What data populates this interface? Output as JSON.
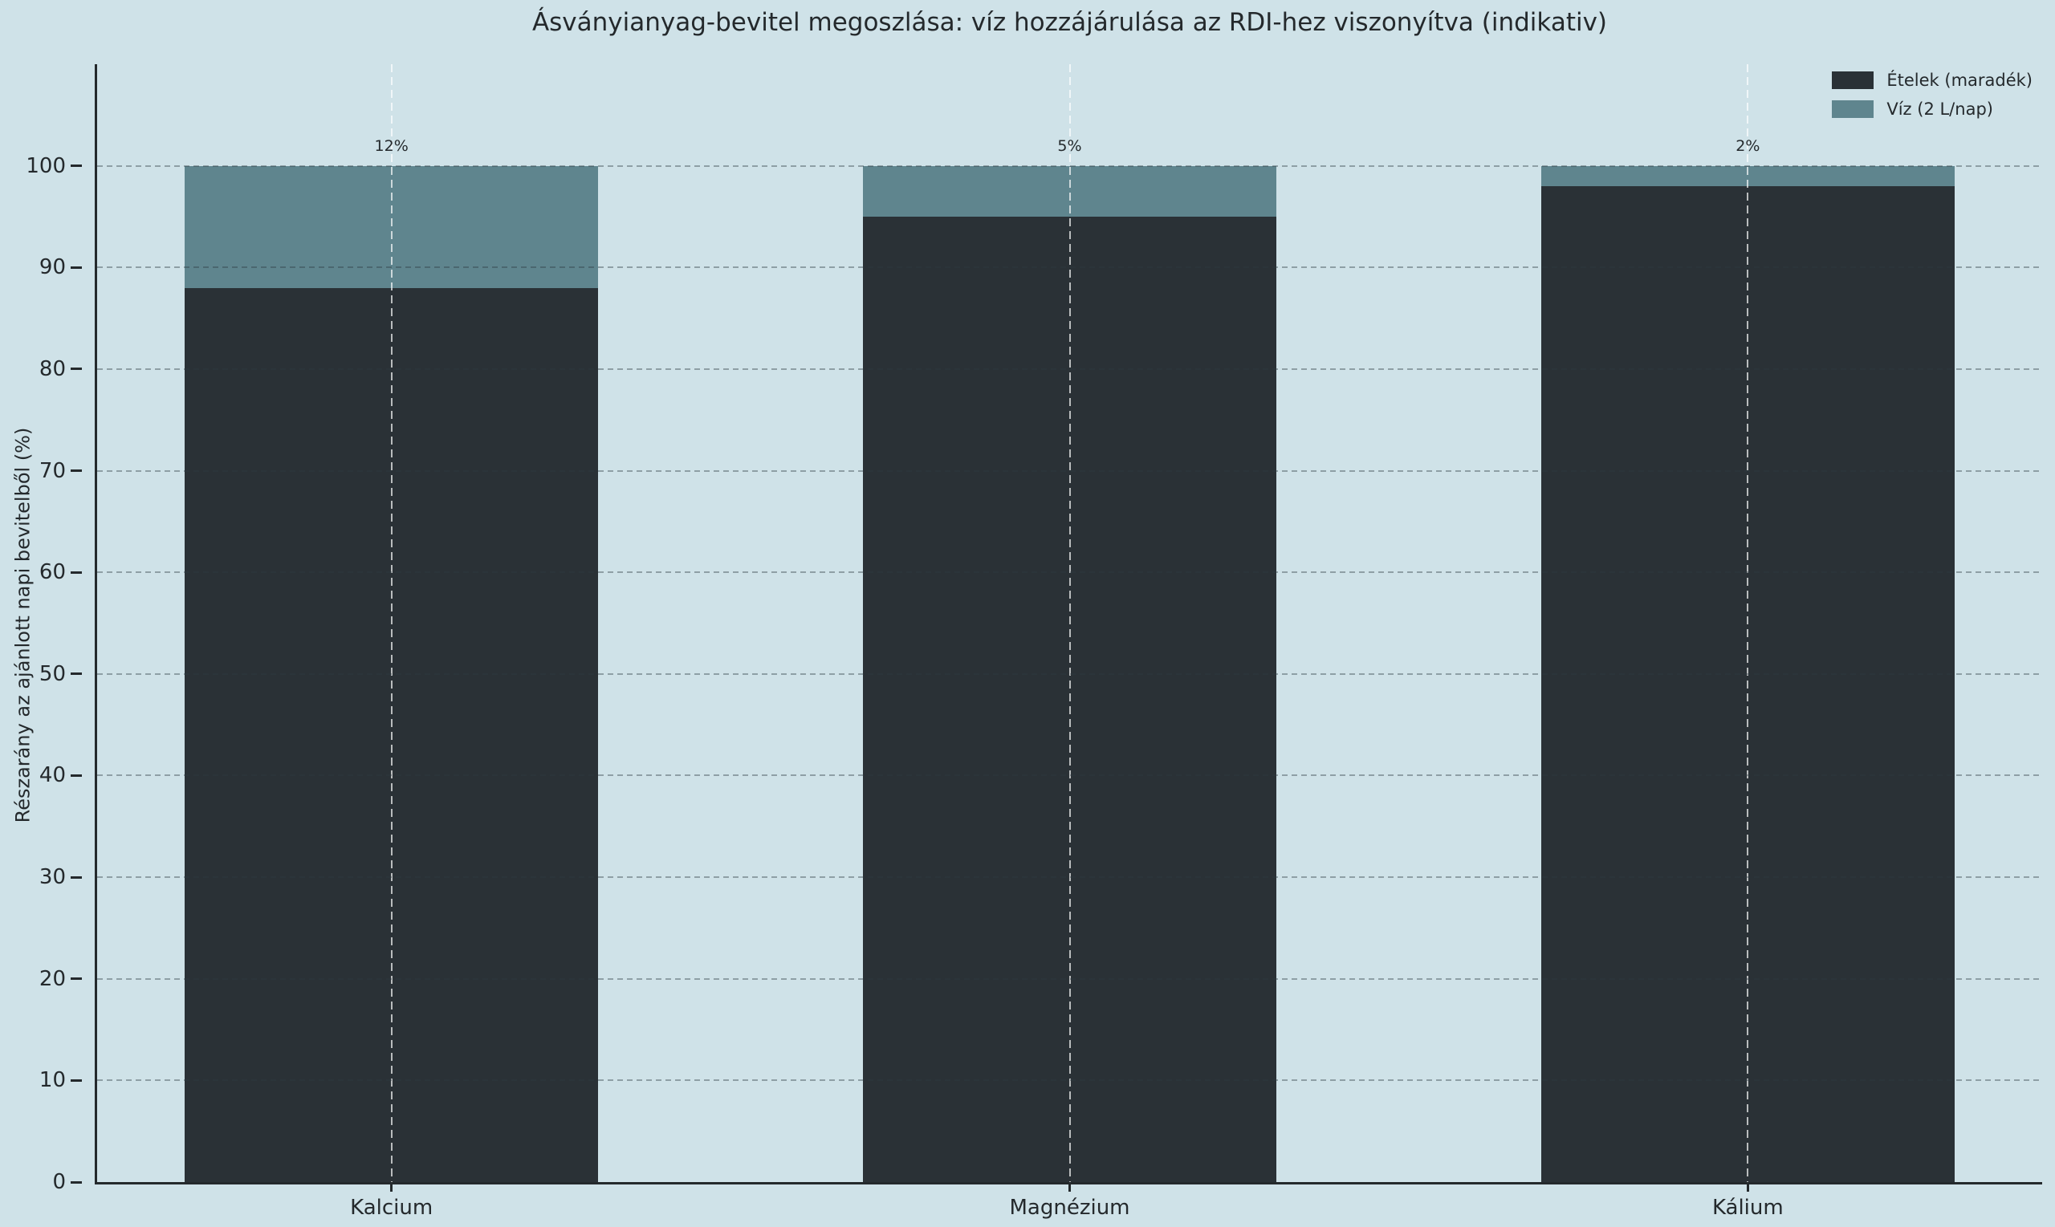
{
  "chart_data": {
    "type": "bar",
    "stacked": true,
    "title": "Ásványianyag-bevitel megoszlása: víz hozzájárulása az RDI-hez viszonyítva (indikativ)",
    "categories": [
      "Kalcium",
      "Magnézium",
      "Kálium"
    ],
    "series": [
      {
        "name": "Ételek (maradék)",
        "values": [
          88,
          95,
          98
        ],
        "color": "#2a3136"
      },
      {
        "name": "Víz (2 L/nap)",
        "values": [
          12,
          5,
          2
        ],
        "color": "#5f858e"
      }
    ],
    "bar_labels": [
      "12%",
      "5%",
      "2%"
    ],
    "xlabel": "",
    "ylabel": "Részarány az ajánlott napi bevitelből (%)",
    "ylim": [
      0,
      110
    ],
    "yticks": [
      0,
      10,
      20,
      30,
      40,
      50,
      60,
      70,
      80,
      90,
      100
    ],
    "grid": {
      "horizontal": "dashed-gray",
      "vertical_at_bar_centers": "dashed-white"
    },
    "legend_position": "upper right",
    "colors": {
      "background": "#cfe2e8",
      "text": "#24292c",
      "food_bar": "#2a3136",
      "water_bar": "#5f858e"
    }
  }
}
